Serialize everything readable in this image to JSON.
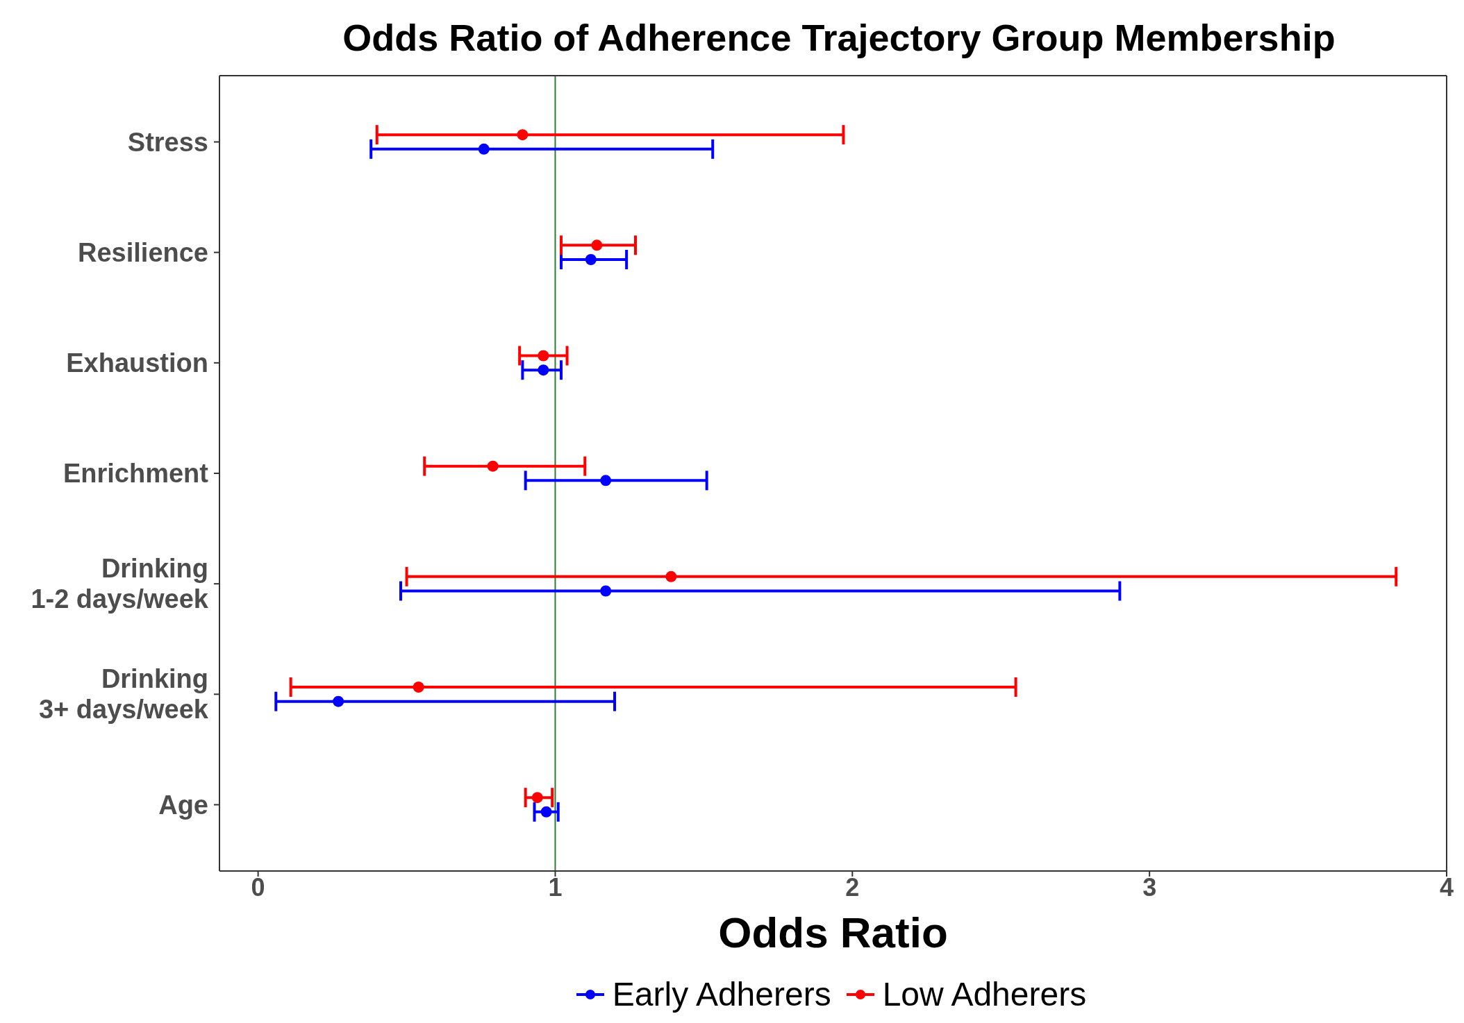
{
  "chart_data": {
    "type": "scatter",
    "orientation": "horizontal",
    "title": "Odds Ratio of Adherence Trajectory Group Membership",
    "xlabel": "Odds Ratio",
    "categories": [
      "Stress",
      "Resilience",
      "Exhaustion",
      "Enrichment",
      "Drinking\n1-2 days/week",
      "Drinking\n3+ days/week",
      "Age"
    ],
    "series": [
      {
        "name": "Early Adherers",
        "color": "#0000ff",
        "values": [
          0.76,
          1.12,
          0.96,
          1.17,
          1.17,
          0.27,
          0.97
        ],
        "errors": [
          [
            0.38,
            1.53
          ],
          [
            1.02,
            1.24
          ],
          [
            0.89,
            1.02
          ],
          [
            0.9,
            1.51
          ],
          [
            0.48,
            2.9
          ],
          [
            0.06,
            1.2
          ],
          [
            0.93,
            1.01
          ]
        ]
      },
      {
        "name": "Low Adherers",
        "color": "#ff0000",
        "values": [
          0.89,
          1.14,
          0.96,
          0.79,
          1.39,
          0.54,
          0.94
        ],
        "errors": [
          [
            0.4,
            1.97
          ],
          [
            1.02,
            1.27
          ],
          [
            0.88,
            1.04
          ],
          [
            0.56,
            1.1
          ],
          [
            0.5,
            3.83
          ],
          [
            0.11,
            2.55
          ],
          [
            0.9,
            0.99
          ]
        ]
      }
    ],
    "xlim": [
      -0.13,
      4.0
    ],
    "xticks": [
      0,
      1,
      2,
      3,
      4
    ],
    "ref_lines": [
      {
        "axis": "x",
        "value": 1,
        "color": "#2e7d32"
      }
    ],
    "legend": "bottom",
    "marker": "circle"
  }
}
